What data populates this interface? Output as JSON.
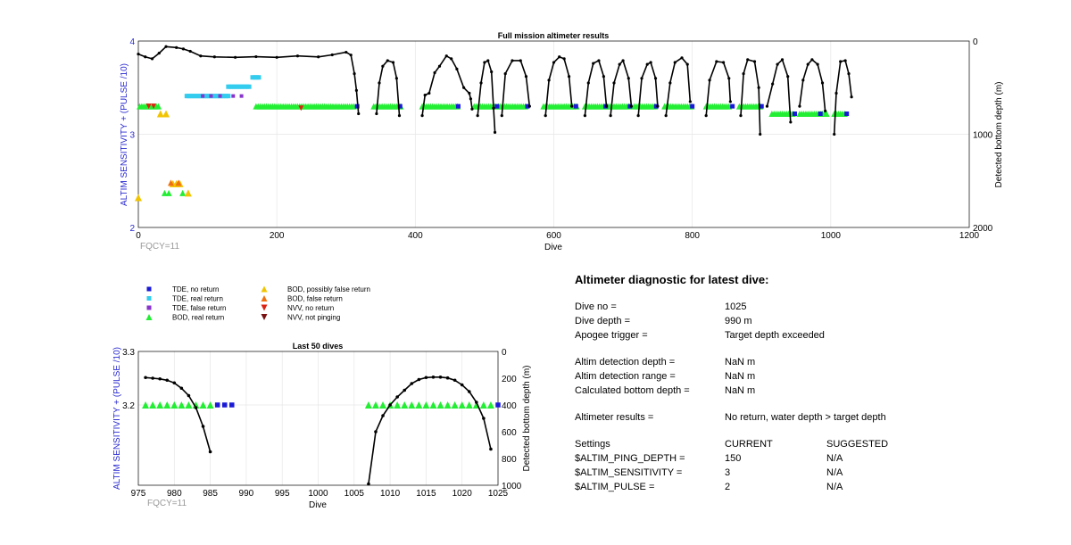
{
  "chart_data": [
    {
      "type": "line",
      "title": "Full mission altimeter results",
      "xlabel": "Dive",
      "ylabel": "ALTIM SENSITIVITY + (PULSE /10)",
      "y2label": "Detected bottom depth (m)",
      "xlim": [
        0,
        1200
      ],
      "ylim": [
        2,
        4
      ],
      "y2lim": [
        2000,
        0
      ],
      "xticks": [
        "0",
        "200",
        "400",
        "600",
        "800",
        "1000",
        "1200"
      ],
      "yticks": [
        "4",
        "3",
        "2"
      ],
      "y2ticks": [
        "0",
        "1000",
        "2000"
      ],
      "annotation": "FQCY=11",
      "grid": true,
      "bottom_depth_segments": [
        [
          [
            0,
            140
          ],
          [
            10,
            170
          ],
          [
            20,
            190
          ],
          [
            30,
            130
          ],
          [
            40,
            60
          ],
          [
            55,
            70
          ],
          [
            65,
            85
          ],
          [
            75,
            110
          ],
          [
            90,
            160
          ],
          [
            110,
            170
          ],
          [
            140,
            175
          ],
          [
            170,
            168
          ],
          [
            200,
            175
          ],
          [
            230,
            160
          ],
          [
            260,
            170
          ],
          [
            280,
            148
          ],
          [
            300,
            120
          ],
          [
            307,
            150
          ],
          [
            312,
            350
          ],
          [
            315,
            530
          ],
          [
            318,
            780
          ]
        ],
        [
          [
            344,
            780
          ],
          [
            348,
            450
          ],
          [
            353,
            270
          ],
          [
            360,
            210
          ],
          [
            368,
            230
          ],
          [
            373,
            400
          ],
          [
            377,
            800
          ]
        ],
        [
          [
            410,
            800
          ],
          [
            414,
            580
          ],
          [
            420,
            560
          ],
          [
            428,
            340
          ],
          [
            435,
            270
          ],
          [
            445,
            160
          ],
          [
            452,
            190
          ],
          [
            460,
            300
          ],
          [
            470,
            500
          ],
          [
            478,
            560
          ],
          [
            480,
            620
          ],
          [
            482,
            730
          ]
        ],
        [
          [
            490,
            800
          ],
          [
            495,
            450
          ],
          [
            500,
            230
          ],
          [
            505,
            210
          ],
          [
            510,
            330
          ],
          [
            513,
            720
          ],
          [
            515,
            980
          ]
        ],
        [
          [
            525,
            800
          ],
          [
            530,
            350
          ],
          [
            540,
            210
          ],
          [
            552,
            210
          ],
          [
            560,
            380
          ],
          [
            565,
            700
          ]
        ],
        [
          [
            588,
            800
          ],
          [
            593,
            420
          ],
          [
            600,
            230
          ],
          [
            608,
            170
          ],
          [
            615,
            190
          ],
          [
            622,
            380
          ],
          [
            626,
            700
          ]
        ],
        [
          [
            645,
            800
          ],
          [
            650,
            450
          ],
          [
            657,
            240
          ],
          [
            665,
            210
          ],
          [
            672,
            380
          ],
          [
            676,
            700
          ]
        ],
        [
          [
            682,
            800
          ],
          [
            687,
            450
          ],
          [
            695,
            250
          ],
          [
            700,
            210
          ],
          [
            708,
            400
          ],
          [
            712,
            700
          ]
        ],
        [
          [
            722,
            800
          ],
          [
            727,
            400
          ],
          [
            735,
            250
          ],
          [
            740,
            230
          ],
          [
            747,
            400
          ],
          [
            750,
            700
          ]
        ],
        [
          [
            762,
            800
          ],
          [
            768,
            450
          ],
          [
            775,
            230
          ],
          [
            785,
            180
          ],
          [
            793,
            250
          ],
          [
            797,
            650
          ]
        ],
        [
          [
            820,
            800
          ],
          [
            825,
            420
          ],
          [
            835,
            220
          ],
          [
            845,
            230
          ],
          [
            853,
            400
          ],
          [
            855,
            650
          ]
        ],
        [
          [
            870,
            800
          ],
          [
            874,
            350
          ],
          [
            880,
            200
          ],
          [
            890,
            220
          ],
          [
            896,
            500
          ],
          [
            898,
            1000
          ]
        ],
        [
          [
            908,
            700
          ],
          [
            916,
            460
          ],
          [
            923,
            250
          ],
          [
            930,
            200
          ],
          [
            938,
            380
          ],
          [
            942,
            870
          ]
        ],
        [
          [
            955,
            700
          ],
          [
            960,
            420
          ],
          [
            967,
            250
          ],
          [
            973,
            200
          ],
          [
            981,
            250
          ],
          [
            988,
            450
          ],
          [
            992,
            750
          ]
        ],
        [
          [
            1005,
            1000
          ],
          [
            1008,
            560
          ],
          [
            1014,
            220
          ],
          [
            1021,
            210
          ],
          [
            1026,
            350
          ],
          [
            1030,
            600
          ]
        ]
      ],
      "bod_real_return_ranges": [
        [
          2,
          30,
          3.3
        ],
        [
          170,
          313,
          3.3
        ],
        [
          340,
          380,
          3.3
        ],
        [
          410,
          462,
          3.3
        ],
        [
          485,
          515,
          3.3
        ],
        [
          520,
          560,
          3.3
        ],
        [
          585,
          635,
          3.3
        ],
        [
          645,
          675,
          3.3
        ],
        [
          678,
          710,
          3.3
        ],
        [
          716,
          746,
          3.3
        ],
        [
          760,
          800,
          3.3
        ],
        [
          820,
          855,
          3.3
        ],
        [
          868,
          900,
          3.3
        ],
        [
          915,
          945,
          3.22
        ],
        [
          955,
          995,
          3.22
        ],
        [
          1005,
          1020,
          3.22
        ]
      ],
      "tde_no_return_dives": [
        316,
        378,
        462,
        518,
        562,
        632,
        675,
        710,
        748,
        800,
        858,
        900,
        948,
        985,
        1023
      ],
      "tde_real_return_ranges": [
        [
          70,
          130,
          3.41
        ],
        [
          130,
          160,
          3.51
        ],
        [
          165,
          175,
          3.61
        ]
      ],
      "tde_false_return_dives": [
        93,
        105,
        118,
        137,
        149
      ],
      "bod_possibly_false": [
        [
          0,
          2.32
        ],
        [
          32,
          3.22
        ],
        [
          40,
          3.22
        ],
        [
          50,
          2.47
        ],
        [
          55,
          2.47
        ],
        [
          60,
          2.47
        ],
        [
          72,
          2.37
        ]
      ],
      "bod_false_return": [
        [
          47,
          2.48
        ],
        [
          58,
          2.48
        ]
      ],
      "nvv_no_return": [
        [
          15,
          3.3
        ],
        [
          22,
          3.3
        ],
        [
          235,
          3.28
        ]
      ],
      "bod_early_real": [
        [
          38,
          2.37
        ],
        [
          44,
          2.37
        ],
        [
          64,
          2.37
        ]
      ]
    },
    {
      "type": "line",
      "title": "Last 50 dives",
      "xlabel": "Dive",
      "ylabel": "ALTIM SENSITIVITY + (PULSE /10)",
      "y2label": "Detected bottom depth (m)",
      "xlim": [
        975,
        1025
      ],
      "ylim": [
        3.05,
        3.3
      ],
      "y2lim": [
        1000,
        0
      ],
      "xticks": [
        "975",
        "980",
        "985",
        "990",
        "995",
        "1000",
        "1005",
        "1010",
        "1015",
        "1020",
        "1025"
      ],
      "yticks": [
        "3.3",
        "3.2"
      ],
      "y2ticks": [
        "0",
        "200",
        "400",
        "600",
        "800",
        "1000"
      ],
      "annotation": "FQCY=11",
      "grid": true,
      "bottom_depth": [
        {
          "dive": 976,
          "depth": 195
        },
        {
          "dive": 977,
          "depth": 200
        },
        {
          "dive": 978,
          "depth": 205
        },
        {
          "dive": 979,
          "depth": 215
        },
        {
          "dive": 980,
          "depth": 235
        },
        {
          "dive": 981,
          "depth": 275
        },
        {
          "dive": 982,
          "depth": 330
        },
        {
          "dive": 983,
          "depth": 420
        },
        {
          "dive": 984,
          "depth": 560
        },
        {
          "dive": 985,
          "depth": 750
        },
        {
          "dive": 1007,
          "depth": 990
        },
        {
          "dive": 1008,
          "depth": 600
        },
        {
          "dive": 1009,
          "depth": 480
        },
        {
          "dive": 1010,
          "depth": 400
        },
        {
          "dive": 1011,
          "depth": 340
        },
        {
          "dive": 1012,
          "depth": 290
        },
        {
          "dive": 1013,
          "depth": 240
        },
        {
          "dive": 1014,
          "depth": 210
        },
        {
          "dive": 1015,
          "depth": 195
        },
        {
          "dive": 1016,
          "depth": 192
        },
        {
          "dive": 1017,
          "depth": 192
        },
        {
          "dive": 1018,
          "depth": 198
        },
        {
          "dive": 1019,
          "depth": 215
        },
        {
          "dive": 1020,
          "depth": 250
        },
        {
          "dive": 1021,
          "depth": 300
        },
        {
          "dive": 1022,
          "depth": 380
        },
        {
          "dive": 1023,
          "depth": 500
        },
        {
          "dive": 1024,
          "depth": 730
        }
      ],
      "bod_real_return": [
        976,
        977,
        978,
        979,
        980,
        981,
        982,
        983,
        984,
        985,
        1007,
        1008,
        1009,
        1010,
        1011,
        1012,
        1013,
        1014,
        1015,
        1016,
        1017,
        1018,
        1019,
        1020,
        1021,
        1022,
        1023,
        1024
      ],
      "tde_no_return": [
        986,
        987,
        988,
        1025
      ],
      "sensitivity_value": 3.2
    }
  ],
  "legend": [
    {
      "label": "TDE, no return",
      "marker": "square",
      "color": "#1a1ad6"
    },
    {
      "label": "TDE, real return",
      "marker": "square",
      "color": "#33ccee"
    },
    {
      "label": "TDE, false return",
      "marker": "square",
      "color": "#8833cc"
    },
    {
      "label": "BOD, real return",
      "marker": "triangle-up",
      "color": "#22ee33"
    },
    {
      "label": "BOD, possibly false return",
      "marker": "triangle-up",
      "color": "#f2c400"
    },
    {
      "label": "BOD, false return",
      "marker": "triangle-up",
      "color": "#f07010"
    },
    {
      "label": "NVV, no return",
      "marker": "triangle-down",
      "color": "#dd2211"
    },
    {
      "label": "NVV, not pinging",
      "marker": "triangle-down",
      "color": "#7a1010"
    }
  ],
  "diagnostic": {
    "title": "Altimeter diagnostic for latest dive:",
    "dive_no_label": "Dive no =",
    "dive_no": "1025",
    "dive_depth_label": "Dive depth =",
    "dive_depth": "990 m",
    "apogee_label": "Apogee trigger =",
    "apogee": "Target depth exceeded",
    "det_depth_label": "Altim detection depth =",
    "det_depth": "NaN m",
    "det_range_label": "Altim detection range =",
    "det_range": "NaN m",
    "calc_depth_label": "Calculated bottom depth =",
    "calc_depth": "NaN m",
    "results_label": "Altimeter results =",
    "results": "No return, water depth > target depth",
    "settings_label": "Settings",
    "current_label": "CURRENT",
    "suggested_label": "SUGGESTED",
    "ping_depth_label": "$ALTIM_PING_DEPTH =",
    "ping_depth_current": "150",
    "ping_depth_suggested": "N/A",
    "sensitivity_label": "$ALTIM_SENSITIVITY =",
    "sensitivity_current": "3",
    "sensitivity_suggested": "N/A",
    "pulse_label": "$ALTIM_PULSE =",
    "pulse_current": "2",
    "pulse_suggested": "N/A"
  },
  "colors": {
    "axis_label_blue": "#2a2ad0",
    "annotation_grey": "#999999",
    "grid": "#e6e6e6",
    "line": "#000000"
  }
}
